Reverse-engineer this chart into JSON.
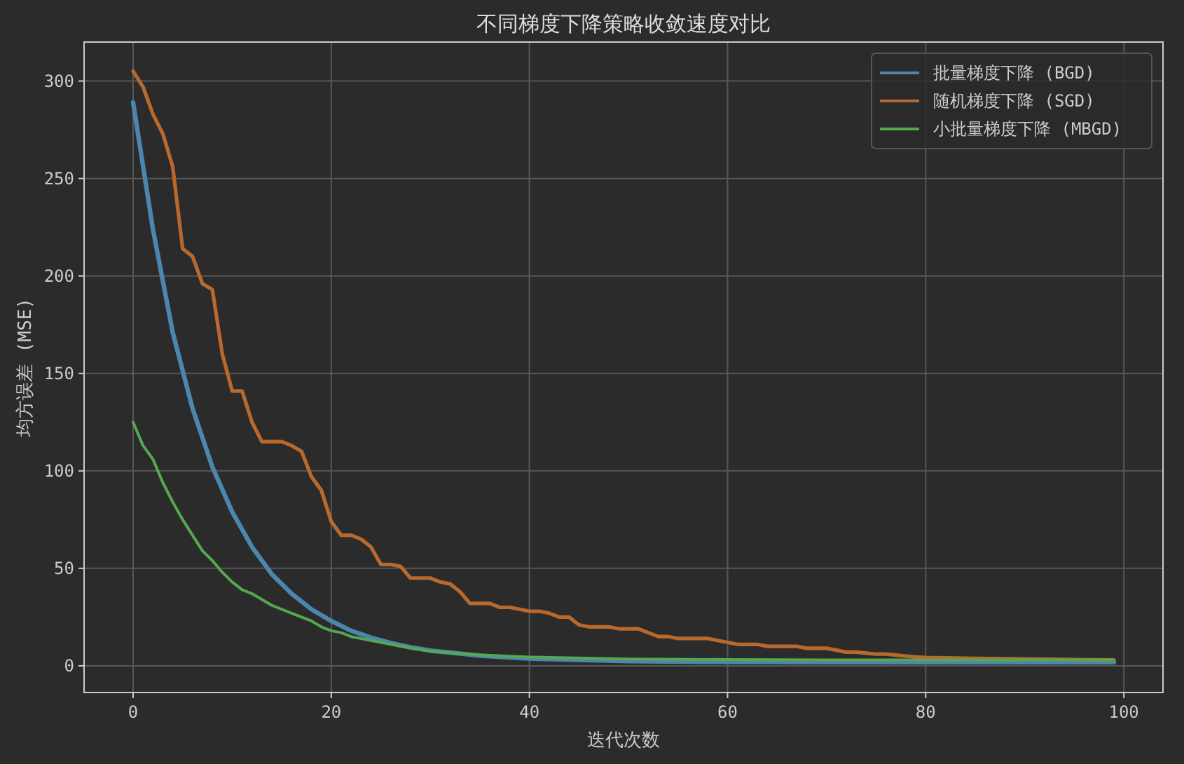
{
  "chart_data": {
    "type": "line",
    "title": "不同梯度下降策略收敛速度对比",
    "xlabel": "迭代次数",
    "ylabel": "均方误差 (MSE)",
    "xlim": [
      -4.95,
      103.95
    ],
    "ylim": [
      -13.7,
      320
    ],
    "xticks": [
      0,
      20,
      40,
      60,
      80,
      100
    ],
    "yticks": [
      0,
      50,
      100,
      150,
      200,
      250,
      300
    ],
    "grid": true,
    "legend": "top right",
    "marker": "none",
    "line_style": "solid",
    "series": [
      {
        "name": "批量梯度下降 (BGD)",
        "color": "#4c86ad",
        "x": [
          0,
          2,
          4,
          6,
          8,
          10,
          12,
          14,
          16,
          18,
          20,
          22,
          24,
          26,
          28,
          30,
          35,
          40,
          50,
          60,
          70,
          80,
          99
        ],
        "values": [
          289,
          224,
          171,
          132,
          102,
          79,
          61,
          47,
          37,
          29,
          23,
          18,
          14.5,
          11.7,
          9.5,
          7.8,
          5.2,
          3.7,
          2.4,
          2.0,
          1.9,
          1.8,
          1.8
        ]
      },
      {
        "name": "随机梯度下降 (SGD)",
        "color": "#b8692e",
        "x": [
          0,
          1,
          2,
          3,
          4,
          5,
          6,
          7,
          8,
          9,
          10,
          11,
          12,
          13,
          14,
          15,
          16,
          17,
          18,
          19,
          20,
          21,
          22,
          23,
          24,
          25,
          26,
          27,
          28,
          29,
          30,
          31,
          32,
          33,
          34,
          35,
          36,
          37,
          38,
          39,
          40,
          41,
          42,
          43,
          44,
          45,
          46,
          47,
          48,
          49,
          50,
          51,
          52,
          53,
          54,
          55,
          56,
          57,
          58,
          59,
          60,
          61,
          62,
          63,
          64,
          65,
          66,
          67,
          68,
          69,
          70,
          71,
          72,
          73,
          74,
          75,
          76,
          77,
          78,
          79,
          80,
          85,
          90,
          95,
          99
        ],
        "values": [
          305,
          297,
          283,
          273,
          256,
          214,
          210,
          196,
          193,
          160,
          141,
          141,
          125,
          115,
          115,
          115,
          113,
          110,
          97,
          90,
          74,
          67,
          67,
          65,
          61,
          52,
          52,
          51,
          45,
          45,
          45,
          43,
          42,
          38,
          32,
          32,
          32,
          30,
          30,
          29,
          28,
          28,
          27,
          25,
          25,
          21,
          20,
          20,
          20,
          19,
          19,
          19,
          17,
          15,
          15,
          14,
          14,
          14,
          14,
          13,
          12,
          11,
          11,
          11,
          10,
          10,
          10,
          10,
          9,
          9,
          9,
          8,
          7,
          7,
          6.5,
          6,
          6,
          5.5,
          5,
          4.5,
          4.2,
          3.8,
          3.5,
          3.2,
          3.0
        ]
      },
      {
        "name": "小批量梯度下降 (MBGD)",
        "color": "#55a84f",
        "x": [
          0,
          1,
          2,
          3,
          4,
          5,
          6,
          7,
          8,
          9,
          10,
          11,
          12,
          13,
          14,
          15,
          16,
          17,
          18,
          19,
          20,
          21,
          22,
          23,
          24,
          25,
          26,
          27,
          28,
          30,
          35,
          40,
          50,
          60,
          70,
          80,
          99
        ],
        "values": [
          125,
          113,
          106,
          94,
          84,
          75,
          67,
          59,
          54,
          48,
          43,
          39,
          37,
          34,
          31,
          29,
          27,
          25,
          23,
          20,
          18,
          17,
          15,
          14,
          13,
          12,
          11,
          10,
          9,
          7.5,
          5.5,
          4.5,
          3.5,
          3.2,
          3.0,
          3.0,
          3.0
        ]
      }
    ]
  }
}
